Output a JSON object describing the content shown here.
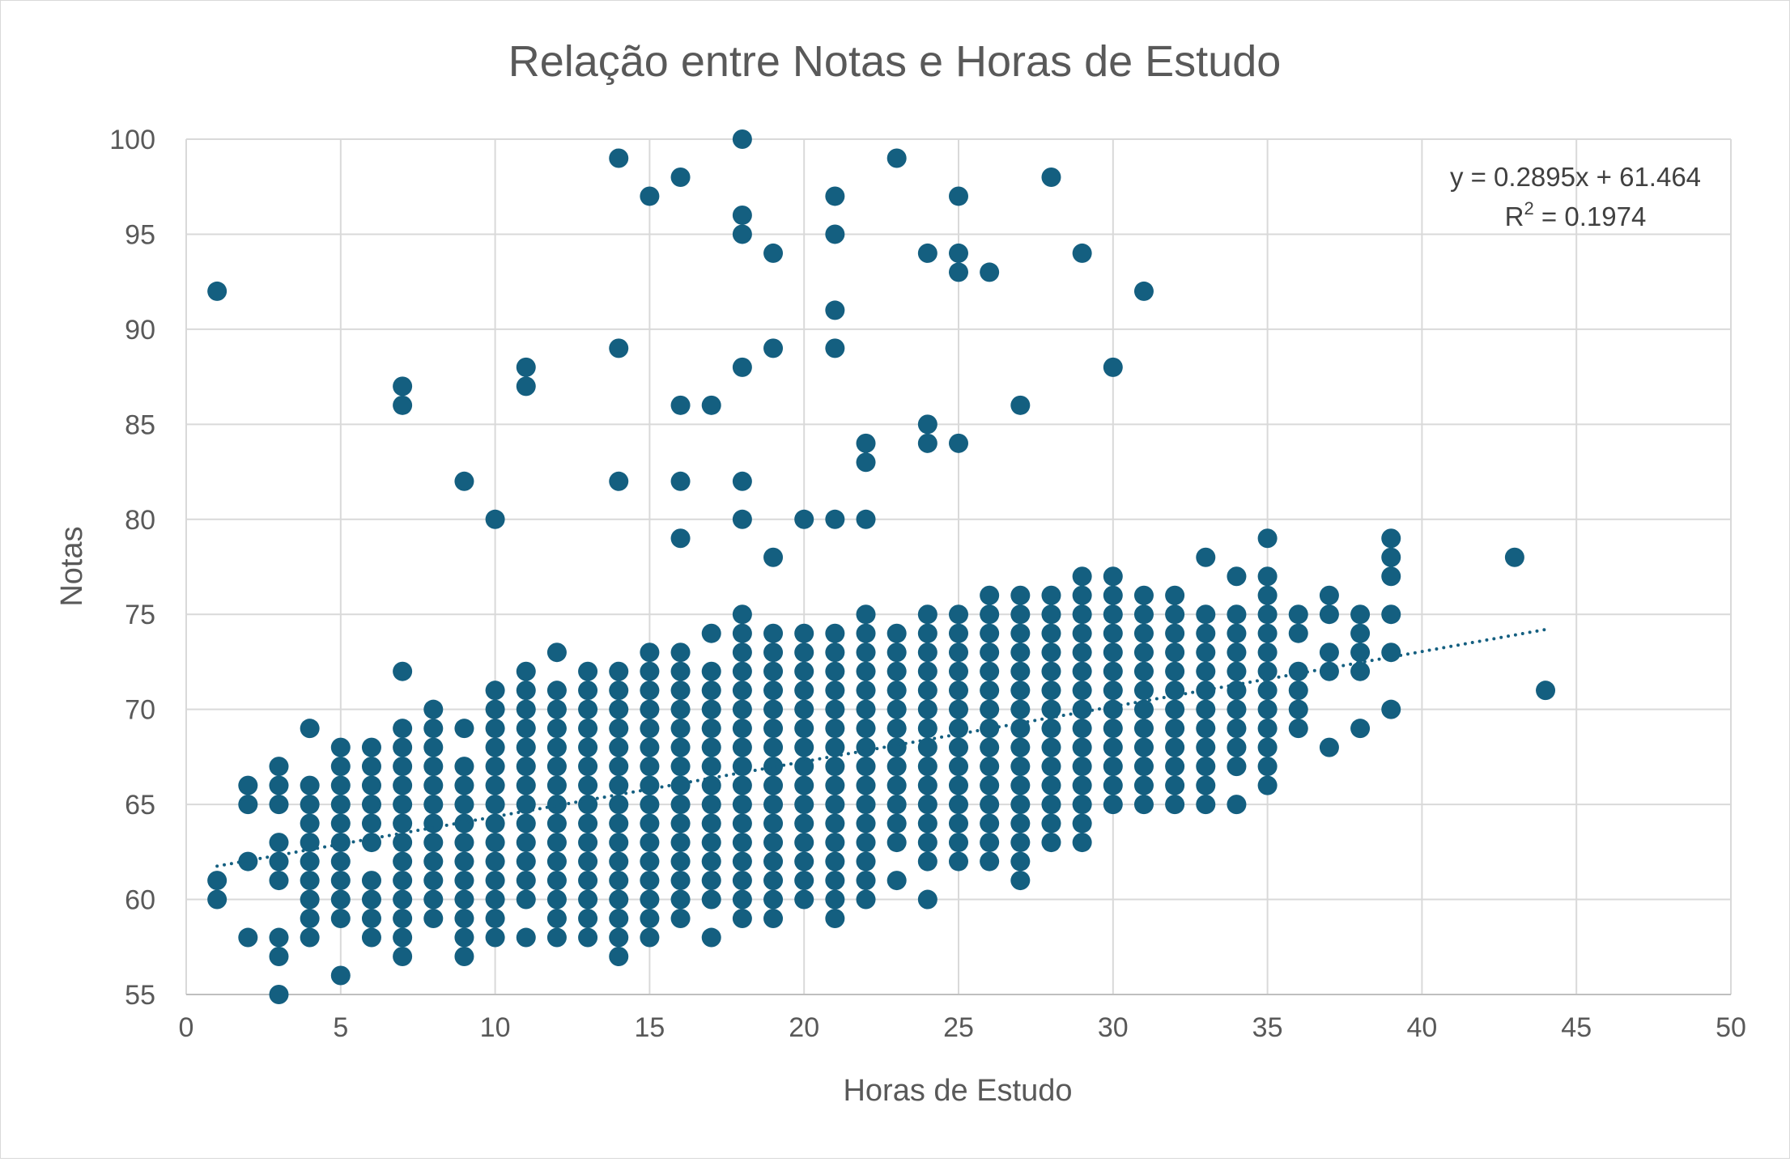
{
  "chart_data": {
    "type": "scatter",
    "title": "Relação entre Notas e Horas de Estudo",
    "xlabel": "Horas de Estudo",
    "ylabel": "Notas",
    "xlim": [
      0,
      50
    ],
    "ylim": [
      55,
      100
    ],
    "xticks": [
      0,
      5,
      10,
      15,
      20,
      25,
      30,
      35,
      40,
      45,
      50
    ],
    "yticks": [
      55,
      60,
      65,
      70,
      75,
      80,
      85,
      90,
      95,
      100
    ],
    "grid": true,
    "legend": "none",
    "series": [
      {
        "marker_color": "#145f80",
        "columns": [
          {
            "x": 1,
            "y": [
              60,
              61,
              92
            ]
          },
          {
            "x": 2,
            "y": [
              58,
              62,
              65,
              66
            ]
          },
          {
            "x": 3,
            "y": [
              55,
              57,
              58,
              61,
              62,
              63,
              65,
              66,
              67
            ]
          },
          {
            "x": 4,
            "y": [
              58,
              59,
              60,
              61,
              62,
              63,
              64,
              65,
              66,
              69
            ]
          },
          {
            "x": 5,
            "y": [
              56,
              59,
              60,
              61,
              62,
              63,
              64,
              65,
              66,
              67,
              68
            ]
          },
          {
            "x": 6,
            "y": [
              58,
              59,
              60,
              61,
              63,
              64,
              65,
              66,
              67,
              68
            ]
          },
          {
            "x": 7,
            "y": [
              57,
              58,
              59,
              60,
              61,
              62,
              63,
              64,
              65,
              66,
              67,
              68,
              69,
              72,
              86,
              87
            ]
          },
          {
            "x": 8,
            "y": [
              59,
              60,
              61,
              62,
              63,
              64,
              65,
              66,
              67,
              68,
              69,
              70
            ]
          },
          {
            "x": 9,
            "y": [
              57,
              58,
              59,
              60,
              61,
              62,
              63,
              64,
              65,
              66,
              67,
              69,
              82
            ]
          },
          {
            "x": 10,
            "y": [
              58,
              59,
              60,
              61,
              62,
              63,
              64,
              65,
              66,
              67,
              68,
              69,
              70,
              71,
              80
            ]
          },
          {
            "x": 11,
            "y": [
              58,
              60,
              61,
              62,
              63,
              64,
              65,
              66,
              67,
              68,
              69,
              70,
              71,
              72,
              87,
              88
            ]
          },
          {
            "x": 12,
            "y": [
              58,
              59,
              60,
              61,
              62,
              63,
              64,
              65,
              66,
              67,
              68,
              69,
              70,
              71,
              73
            ]
          },
          {
            "x": 13,
            "y": [
              58,
              59,
              60,
              61,
              62,
              63,
              64,
              65,
              66,
              67,
              68,
              69,
              70,
              71,
              72
            ]
          },
          {
            "x": 14,
            "y": [
              57,
              58,
              59,
              60,
              61,
              62,
              63,
              64,
              65,
              66,
              67,
              68,
              69,
              70,
              71,
              72,
              82,
              89,
              99
            ]
          },
          {
            "x": 15,
            "y": [
              58,
              59,
              60,
              61,
              62,
              63,
              64,
              65,
              66,
              67,
              68,
              69,
              70,
              71,
              72,
              73,
              97
            ]
          },
          {
            "x": 16,
            "y": [
              59,
              60,
              61,
              62,
              63,
              64,
              65,
              66,
              67,
              68,
              69,
              70,
              71,
              72,
              73,
              79,
              82,
              86,
              98
            ]
          },
          {
            "x": 17,
            "y": [
              58,
              60,
              61,
              62,
              63,
              64,
              65,
              66,
              67,
              68,
              69,
              70,
              71,
              72,
              74,
              86
            ]
          },
          {
            "x": 18,
            "y": [
              59,
              60,
              61,
              62,
              63,
              64,
              65,
              66,
              67,
              68,
              69,
              70,
              71,
              72,
              73,
              74,
              75,
              80,
              82,
              88,
              95,
              96,
              100
            ]
          },
          {
            "x": 19,
            "y": [
              59,
              60,
              61,
              62,
              63,
              64,
              65,
              66,
              67,
              68,
              69,
              70,
              71,
              72,
              73,
              74,
              78,
              89,
              94
            ]
          },
          {
            "x": 20,
            "y": [
              60,
              61,
              62,
              63,
              64,
              65,
              66,
              67,
              68,
              69,
              70,
              71,
              72,
              73,
              74,
              80
            ]
          },
          {
            "x": 21,
            "y": [
              59,
              60,
              61,
              62,
              63,
              64,
              65,
              66,
              67,
              68,
              69,
              70,
              71,
              72,
              73,
              74,
              80,
              89,
              91,
              95,
              97
            ]
          },
          {
            "x": 22,
            "y": [
              60,
              61,
              62,
              63,
              64,
              65,
              66,
              67,
              68,
              69,
              70,
              71,
              72,
              73,
              74,
              75,
              80,
              83,
              84
            ]
          },
          {
            "x": 23,
            "y": [
              61,
              63,
              64,
              65,
              66,
              67,
              68,
              69,
              70,
              71,
              72,
              73,
              74,
              99
            ]
          },
          {
            "x": 24,
            "y": [
              60,
              62,
              63,
              64,
              65,
              66,
              67,
              68,
              69,
              70,
              71,
              72,
              73,
              74,
              75,
              84,
              85,
              94
            ]
          },
          {
            "x": 25,
            "y": [
              62,
              63,
              64,
              65,
              66,
              67,
              68,
              69,
              70,
              71,
              72,
              73,
              74,
              75,
              84,
              93,
              94,
              97
            ]
          },
          {
            "x": 26,
            "y": [
              62,
              63,
              64,
              65,
              66,
              67,
              68,
              69,
              70,
              71,
              72,
              73,
              74,
              75,
              76,
              93
            ]
          },
          {
            "x": 27,
            "y": [
              61,
              62,
              63,
              64,
              65,
              66,
              67,
              68,
              69,
              70,
              71,
              72,
              73,
              74,
              75,
              76,
              86
            ]
          },
          {
            "x": 28,
            "y": [
              63,
              64,
              65,
              66,
              67,
              68,
              69,
              70,
              71,
              72,
              73,
              74,
              75,
              76,
              98
            ]
          },
          {
            "x": 29,
            "y": [
              63,
              64,
              65,
              66,
              67,
              68,
              69,
              70,
              71,
              72,
              73,
              74,
              75,
              76,
              77,
              94
            ]
          },
          {
            "x": 30,
            "y": [
              65,
              66,
              67,
              68,
              69,
              70,
              71,
              72,
              73,
              74,
              75,
              76,
              77,
              88
            ]
          },
          {
            "x": 31,
            "y": [
              65,
              66,
              67,
              68,
              69,
              70,
              71,
              72,
              73,
              74,
              75,
              76,
              92
            ]
          },
          {
            "x": 32,
            "y": [
              65,
              66,
              67,
              68,
              69,
              70,
              71,
              72,
              73,
              74,
              75,
              76
            ]
          },
          {
            "x": 33,
            "y": [
              65,
              66,
              67,
              68,
              69,
              70,
              71,
              72,
              73,
              74,
              75,
              78
            ]
          },
          {
            "x": 34,
            "y": [
              65,
              67,
              68,
              69,
              70,
              71,
              72,
              73,
              74,
              75,
              77
            ]
          },
          {
            "x": 35,
            "y": [
              66,
              67,
              68,
              69,
              70,
              71,
              72,
              73,
              74,
              75,
              76,
              77,
              79
            ]
          },
          {
            "x": 36,
            "y": [
              69,
              70,
              71,
              72,
              74,
              75
            ]
          },
          {
            "x": 37,
            "y": [
              68,
              72,
              73,
              75,
              76
            ]
          },
          {
            "x": 38,
            "y": [
              69,
              72,
              73,
              74,
              75
            ]
          },
          {
            "x": 39,
            "y": [
              70,
              73,
              75,
              77,
              78,
              79
            ]
          },
          {
            "x": 43,
            "y": [
              78
            ]
          },
          {
            "x": 44,
            "y": [
              71
            ]
          }
        ]
      }
    ],
    "trendline": {
      "type": "linear",
      "style": "dotted",
      "color": "#145f80",
      "slope": 0.2895,
      "intercept": 61.464,
      "x_range": [
        1,
        44
      ],
      "equation_label": "y = 0.2895x + 61.464",
      "r2_prefix": "R",
      "r2_superscript": "2",
      "r2_suffix": " = 0.1974"
    }
  }
}
